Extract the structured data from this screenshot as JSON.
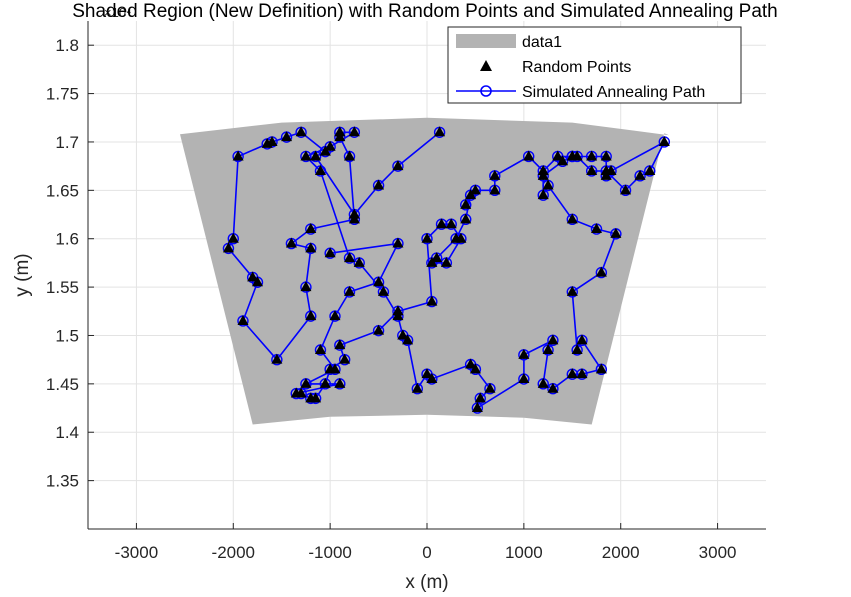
{
  "chart_data": {
    "type": "scatter",
    "title": "Shaded Region (New Definition) with Random Points and Simulated Annealing Path",
    "xlabel": "x (m)",
    "ylabel": "y (m)",
    "xlim": [
      -3500,
      3500
    ],
    "ylim": [
      13000,
      18250
    ],
    "xticks": [
      -3000,
      -2000,
      -1000,
      0,
      1000,
      2000,
      3000
    ],
    "xtick_labels": [
      "-3000",
      "-2000",
      "-1000",
      "0",
      "1000",
      "2000",
      "3000"
    ],
    "yticks": [
      13500,
      14000,
      14500,
      15000,
      15500,
      16000,
      16500,
      17000,
      17500,
      18000
    ],
    "ytick_labels": [
      "1.35",
      "1.4",
      "1.45",
      "1.5",
      "1.55",
      "1.6",
      "1.65",
      "1.7",
      "1.75",
      "1.8"
    ],
    "y_exponent": "×10⁴",
    "grid": true,
    "legend_position": "top-right",
    "legend": [
      "data1",
      "Random Points",
      "Simulated Annealing Path"
    ],
    "colors": {
      "region": "#b3b3b3",
      "path": "#0000ff",
      "points": "#000000"
    },
    "region": {
      "name": "data1",
      "x": [
        -2550,
        -1800,
        -1000,
        0,
        1000,
        1700,
        2450,
        2500,
        1500,
        0,
        -1500,
        -2550
      ],
      "y": [
        17080,
        14080,
        14160,
        14180,
        14150,
        14080,
        17090,
        17070,
        17200,
        17250,
        17200,
        17080
      ]
    },
    "path": {
      "name": "Simulated Annealing Path",
      "x": [
        130,
        -300,
        -500,
        -750,
        -1150,
        -1050,
        -1300,
        -1450,
        -1600,
        -1650,
        -1950,
        -2000,
        -2050,
        -1800,
        -1750,
        -1900,
        -1550,
        -1200,
        -1250,
        -1200,
        -1400,
        -1200,
        -750,
        -800,
        -900,
        -900,
        -750,
        -1000,
        -1250,
        -1100,
        -800,
        -700,
        -450,
        -300,
        -250,
        -200,
        -100,
        0,
        50,
        450,
        500,
        650,
        550,
        520,
        1000,
        1000,
        1300,
        1250,
        1200,
        1300,
        1500,
        1600,
        1800,
        1600,
        1550,
        1500,
        1800,
        1950,
        1750,
        1500,
        1250,
        1200,
        1200,
        1400,
        1500,
        1550,
        1700,
        1850,
        2050,
        2200,
        2300,
        2450,
        1900,
        1850,
        1850,
        1700,
        1500,
        1350,
        1200,
        1050,
        700,
        700,
        500,
        400,
        450,
        400,
        300,
        100,
        50,
        200,
        350,
        250,
        150,
        0,
        50,
        -300,
        -500,
        -900,
        -850,
        -1000,
        -1050,
        -1150,
        -1200,
        -1300,
        -1350,
        -900,
        -1250,
        -950,
        -1100,
        -950,
        -800,
        -500,
        -300,
        -1000
      ],
      "y": [
        17100,
        16750,
        16550,
        16250,
        16850,
        16900,
        17100,
        17050,
        17000,
        16980,
        16850,
        16000,
        15900,
        15600,
        15550,
        15150,
        14750,
        15200,
        15500,
        15900,
        15950,
        16100,
        16200,
        16850,
        17050,
        17100,
        17100,
        16950,
        16850,
        16700,
        15800,
        15750,
        15450,
        15200,
        15000,
        14950,
        14450,
        14600,
        14550,
        14700,
        14650,
        14450,
        14350,
        14250,
        14550,
        14800,
        14950,
        14850,
        14500,
        14450,
        14600,
        14600,
        14650,
        14950,
        14850,
        15450,
        15650,
        16050,
        16100,
        16200,
        16550,
        16450,
        16650,
        16800,
        16850,
        16850,
        16700,
        16700,
        16500,
        16650,
        16700,
        17000,
        16700,
        16650,
        16850,
        16850,
        16850,
        16850,
        16700,
        16850,
        16650,
        16500,
        16500,
        16350,
        16450,
        16200,
        16000,
        15800,
        15750,
        15750,
        16000,
        16150,
        16150,
        16000,
        15350,
        15250,
        15050,
        14900,
        14750,
        14650,
        14500,
        14350,
        14350,
        14400,
        14400,
        14500,
        14500,
        14650,
        14850,
        15200,
        15450,
        15550,
        15950,
        15850
      ]
    },
    "points": {
      "name": "Random Points",
      "x": [
        130,
        -300,
        -500,
        -750,
        -1150,
        -1050,
        -1300,
        -1450,
        -1600,
        -1650,
        -1950,
        -2000,
        -2050,
        -1800,
        -1750,
        -1900,
        -1550,
        -1200,
        -1250,
        -1200,
        -1400,
        -1200,
        -750,
        -800,
        -900,
        -900,
        -750,
        -1000,
        -1250,
        -1100,
        -800,
        -700,
        -450,
        -300,
        -250,
        -200,
        -100,
        0,
        50,
        450,
        500,
        650,
        550,
        520,
        1000,
        1000,
        1300,
        1250,
        1200,
        1300,
        1500,
        1600,
        1800,
        1600,
        1550,
        1500,
        1800,
        1950,
        1750,
        1500,
        1250,
        1200,
        1200,
        1400,
        1500,
        1550,
        1700,
        1850,
        2050,
        2200,
        2300,
        2450,
        1900,
        1850,
        1850,
        1700,
        1500,
        1350,
        1200,
        1050,
        700,
        700,
        500,
        400,
        450,
        400,
        300,
        100,
        50,
        200,
        350,
        250,
        150,
        0,
        50,
        -300,
        -500,
        -900,
        -850,
        -1000,
        -1050,
        -1150,
        -1200,
        -1300,
        -1350,
        -900,
        -1250,
        -950,
        -1100,
        -950,
        -800,
        -500,
        -300,
        -1000
      ],
      "y": [
        17100,
        16750,
        16550,
        16250,
        16850,
        16900,
        17100,
        17050,
        17000,
        16980,
        16850,
        16000,
        15900,
        15600,
        15550,
        15150,
        14750,
        15200,
        15500,
        15900,
        15950,
        16100,
        16200,
        16850,
        17050,
        17100,
        17100,
        16950,
        16850,
        16700,
        15800,
        15750,
        15450,
        15200,
        15000,
        14950,
        14450,
        14600,
        14550,
        14700,
        14650,
        14450,
        14350,
        14250,
        14550,
        14800,
        14950,
        14850,
        14500,
        14450,
        14600,
        14600,
        14650,
        14950,
        14850,
        15450,
        15650,
        16050,
        16100,
        16200,
        16550,
        16450,
        16650,
        16800,
        16850,
        16850,
        16700,
        16700,
        16500,
        16650,
        16700,
        17000,
        16700,
        16650,
        16850,
        16850,
        16850,
        16850,
        16700,
        16850,
        16650,
        16500,
        16500,
        16350,
        16450,
        16200,
        16000,
        15800,
        15750,
        15750,
        16000,
        16150,
        16150,
        16000,
        15350,
        15250,
        15050,
        14900,
        14750,
        14650,
        14500,
        14350,
        14350,
        14400,
        14400,
        14500,
        14500,
        14650,
        14850,
        15200,
        15450,
        15550,
        15950,
        15850
      ]
    }
  }
}
